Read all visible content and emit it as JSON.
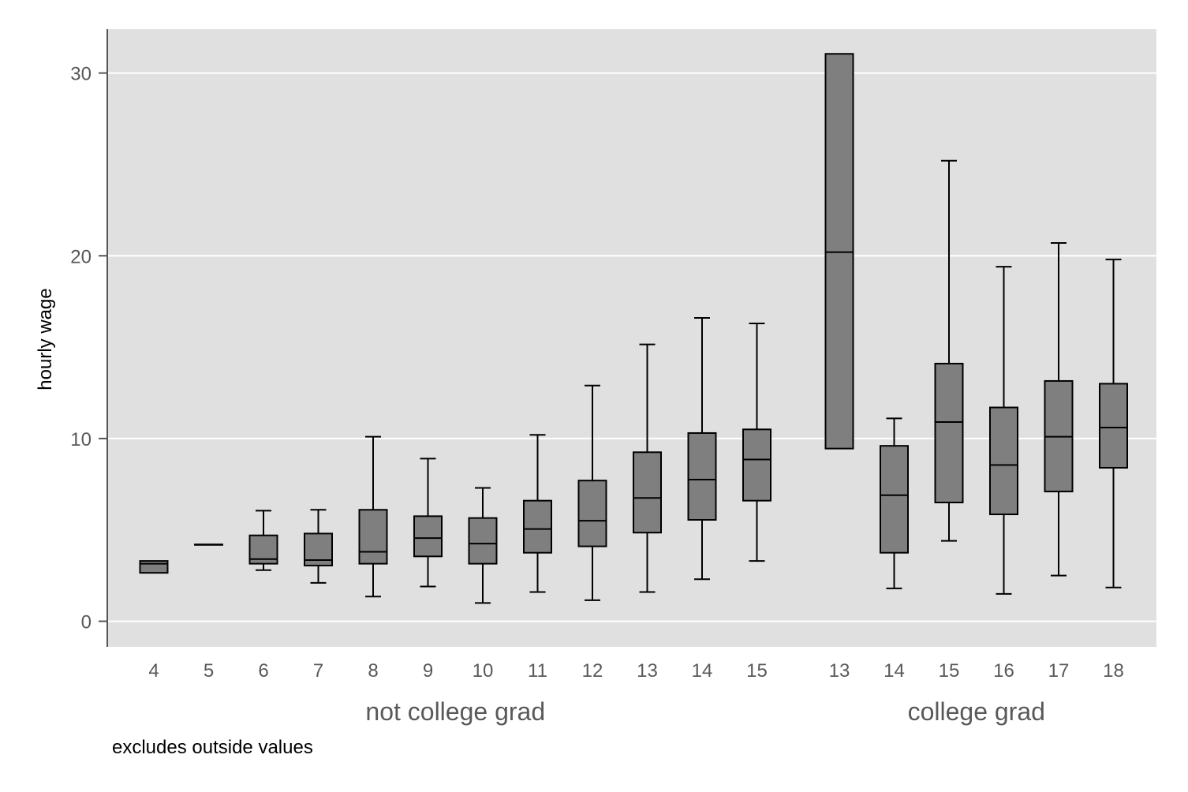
{
  "chart_data": {
    "type": "box",
    "ylabel": "hourly wage",
    "ylim": [
      -1.4,
      32.4
    ],
    "yticks": [
      0,
      10,
      20,
      30
    ],
    "ytick_labels": [
      "0",
      "10",
      "20",
      "30"
    ],
    "grid": true,
    "note": "excludes outside values",
    "groups": [
      {
        "label": "not college grad",
        "boxes": [
          {
            "category": "4",
            "whisker_low": 2.65,
            "q1": 2.65,
            "median": 3.15,
            "q3": 3.3,
            "whisker_high": 3.3
          },
          {
            "category": "5",
            "whisker_low": 4.2,
            "q1": 4.2,
            "median": 4.2,
            "q3": 4.2,
            "whisker_high": 4.2
          },
          {
            "category": "6",
            "whisker_low": 2.8,
            "q1": 3.15,
            "median": 3.4,
            "q3": 4.7,
            "whisker_high": 6.05
          },
          {
            "category": "7",
            "whisker_low": 2.1,
            "q1": 3.05,
            "median": 3.35,
            "q3": 4.8,
            "whisker_high": 6.1
          },
          {
            "category": "8",
            "whisker_low": 1.35,
            "q1": 3.15,
            "median": 3.8,
            "q3": 6.1,
            "whisker_high": 10.1
          },
          {
            "category": "9",
            "whisker_low": 1.9,
            "q1": 3.55,
            "median": 4.55,
            "q3": 5.75,
            "whisker_high": 8.9
          },
          {
            "category": "10",
            "whisker_low": 1.0,
            "q1": 3.15,
            "median": 4.25,
            "q3": 5.65,
            "whisker_high": 7.3
          },
          {
            "category": "11",
            "whisker_low": 1.6,
            "q1": 3.75,
            "median": 5.05,
            "q3": 6.6,
            "whisker_high": 10.2
          },
          {
            "category": "12",
            "whisker_low": 1.15,
            "q1": 4.1,
            "median": 5.5,
            "q3": 7.7,
            "whisker_high": 12.9
          },
          {
            "category": "13",
            "whisker_low": 1.6,
            "q1": 4.85,
            "median": 6.75,
            "q3": 9.25,
            "whisker_high": 15.15
          },
          {
            "category": "14",
            "whisker_low": 2.3,
            "q1": 5.55,
            "median": 7.75,
            "q3": 10.3,
            "whisker_high": 16.6
          },
          {
            "category": "15",
            "whisker_low": 3.3,
            "q1": 6.6,
            "median": 8.85,
            "q3": 10.5,
            "whisker_high": 16.3
          }
        ]
      },
      {
        "label": "college grad",
        "boxes": [
          {
            "category": "13",
            "whisker_low": 9.45,
            "q1": 9.45,
            "median": 20.2,
            "q3": 31.05,
            "whisker_high": 31.05
          },
          {
            "category": "14",
            "whisker_low": 1.8,
            "q1": 3.75,
            "median": 6.9,
            "q3": 9.6,
            "whisker_high": 11.1
          },
          {
            "category": "15",
            "whisker_low": 4.4,
            "q1": 6.5,
            "median": 10.9,
            "q3": 14.1,
            "whisker_high": 25.2
          },
          {
            "category": "16",
            "whisker_low": 1.5,
            "q1": 5.85,
            "median": 8.55,
            "q3": 11.7,
            "whisker_high": 19.4
          },
          {
            "category": "17",
            "whisker_low": 2.5,
            "q1": 7.1,
            "median": 10.1,
            "q3": 13.15,
            "whisker_high": 20.7
          },
          {
            "category": "18",
            "whisker_low": 1.85,
            "q1": 8.4,
            "median": 10.6,
            "q3": 13.0,
            "whisker_high": 19.8
          }
        ]
      }
    ],
    "colors": {
      "plot_background": "#e0e0e0",
      "grid": "#ffffff",
      "box_fill": "#7f7f7f",
      "stroke": "#000000",
      "axis": "#555555",
      "tick_text": "#595959"
    }
  }
}
